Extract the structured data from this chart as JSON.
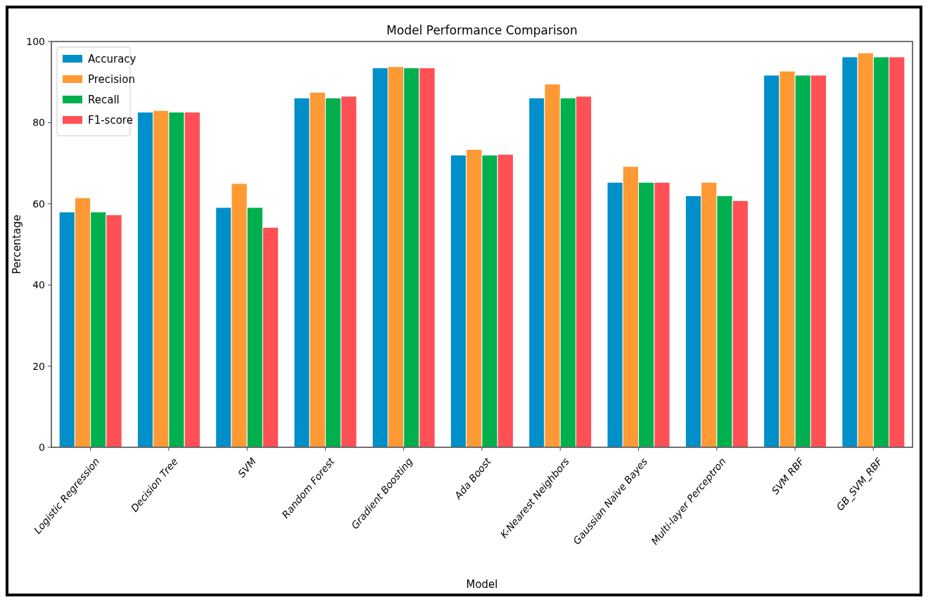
{
  "chart_data": {
    "type": "bar",
    "title": "Model Performance Comparison",
    "xlabel": "Model",
    "ylabel": "Percentage",
    "categories": [
      "Logistic Regression",
      "Decision Tree",
      "SVM",
      "Random Forest",
      "Gradient Boosting",
      "Ada Boost",
      "K-Nearest Neighbors",
      "Gaussian Naive Bayes",
      "Multi-layer Perceptron",
      "SVM RBF",
      "GB_SVM_RBF"
    ],
    "series": [
      {
        "name": "Accuracy",
        "color": "#008fc8",
        "values": [
          58,
          82.6,
          59.1,
          86.1,
          93.5,
          72,
          86.1,
          65.3,
          62,
          91.7,
          96.2
        ]
      },
      {
        "name": "Precision",
        "color": "#ff9933",
        "values": [
          61.5,
          83,
          65,
          87.5,
          93.8,
          73.4,
          89.5,
          69.2,
          65.3,
          92.7,
          97.2
        ]
      },
      {
        "name": "Recall",
        "color": "#00b04f",
        "values": [
          58,
          82.6,
          59.1,
          86.1,
          93.5,
          72,
          86.1,
          65.3,
          62,
          91.7,
          96.2
        ]
      },
      {
        "name": "F1-score",
        "color": "#ff5055",
        "values": [
          57.3,
          82.6,
          54.2,
          86.5,
          93.5,
          72.2,
          86.5,
          65.3,
          60.8,
          91.7,
          96.2
        ]
      }
    ],
    "ylim": [
      0,
      100
    ],
    "yticks": [
      0,
      20,
      40,
      60,
      80,
      100
    ],
    "grid": false,
    "legend": "top left"
  }
}
